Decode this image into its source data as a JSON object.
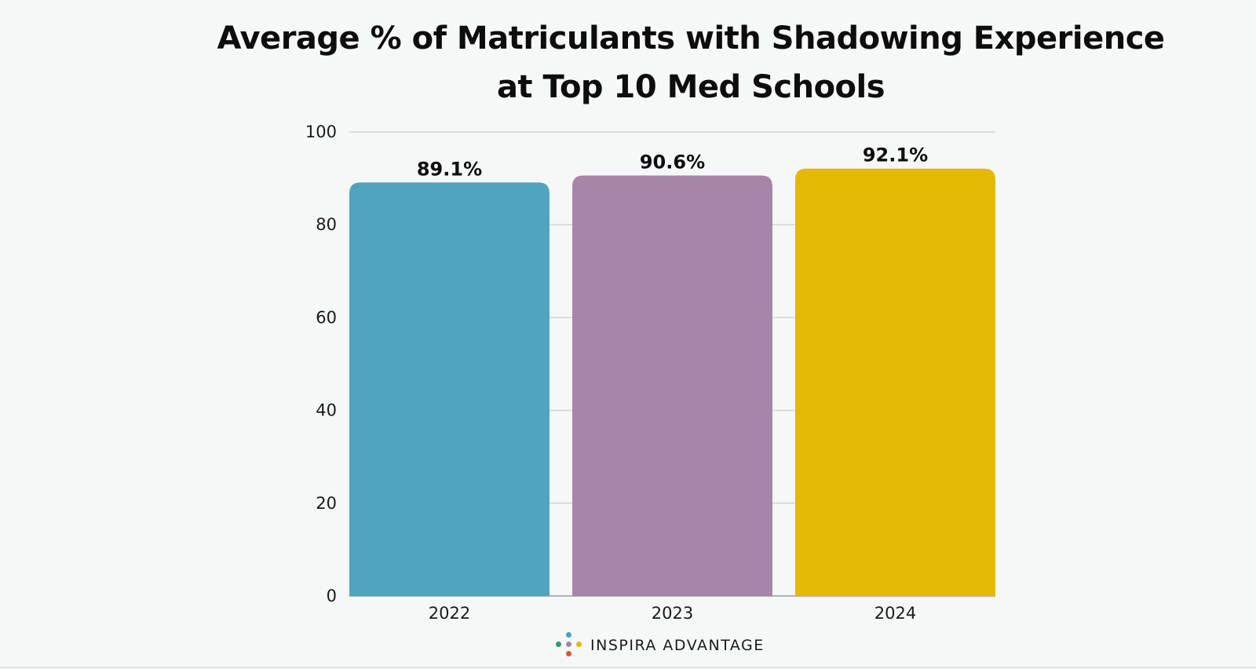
{
  "chart_data": {
    "type": "bar",
    "title_lines": [
      "Average % of Matriculants with Shadowing Experience",
      "at Top 10 Med Schools"
    ],
    "categories": [
      "2022",
      "2023",
      "2024"
    ],
    "values": [
      89.1,
      90.6,
      92.1
    ],
    "value_labels": [
      "89.1%",
      "90.6%",
      "92.1%"
    ],
    "bar_colors": [
      "#51a4bf",
      "#a685a8",
      "#e3b903"
    ],
    "ylim": [
      0,
      100
    ],
    "yticks": [
      "0",
      "20",
      "40",
      "60",
      "80",
      "100"
    ],
    "ytick_values": [
      0,
      20,
      40,
      60,
      80,
      100
    ],
    "grid": true,
    "legend": "none"
  },
  "brand": {
    "name": "INSPIRA ADVANTAGE",
    "dot_colors": [
      "#4ba3c3",
      "#2e9b6b",
      "#a685a8",
      "#e3b903",
      "#e0572a"
    ]
  }
}
